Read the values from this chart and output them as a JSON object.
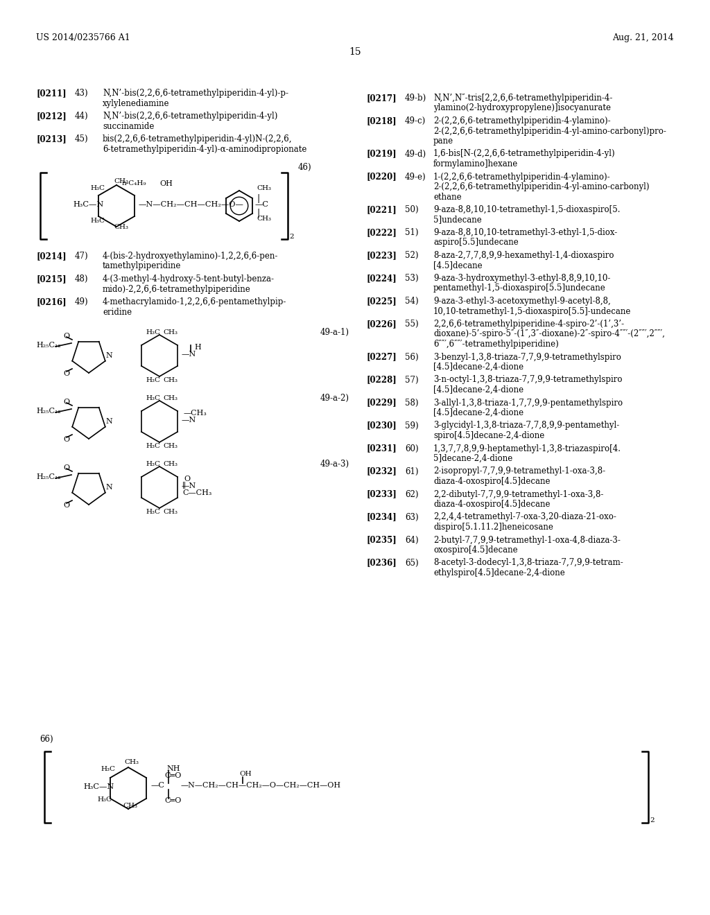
{
  "page_header_left": "US 2014/0235766 A1",
  "page_header_right": "Aug. 21, 2014",
  "page_number": "15",
  "background_color": "#ffffff",
  "right_entries": [
    {
      "ref": "[0217]",
      "num": "49-b)",
      "lines": [
        "N,N’,N″-tris[2,2,6,6-tetramethylpiperidin-4-",
        "ylamino(2-hydroxypropylene)]isocyanurate"
      ]
    },
    {
      "ref": "[0218]",
      "num": "49-c)",
      "lines": [
        "2-(2,2,6,6-tetramethylpiperidin-4-ylamino)-",
        "2-(2,2,6,6-tetramethylpiperidin-4-yl-amino-carbonyl)pro-",
        "pane"
      ]
    },
    {
      "ref": "[0219]",
      "num": "49-d)",
      "lines": [
        "1,6-bis[N-(2,2,6,6-tetramethylpiperidin-4-yl)",
        "formylamino]hexane"
      ]
    },
    {
      "ref": "[0220]",
      "num": "49-e)",
      "lines": [
        "1-(2,2,6,6-tetramethylpiperidin-4-ylamino)-",
        "2-(2,2,6,6-tetramethylpiperidin-4-yl-amino-carbonyl)",
        "ethane"
      ]
    },
    {
      "ref": "[0221]",
      "num": "50)",
      "lines": [
        "9-aza-8,8,10,10-tetramethyl-1,5-dioxaspiro[5.",
        "5]undecane"
      ]
    },
    {
      "ref": "[0222]",
      "num": "51)",
      "lines": [
        "9-aza-8,8,10,10-tetramethyl-3-ethyl-1,5-diox-",
        "aspiro[5.5]undecane"
      ]
    },
    {
      "ref": "[0223]",
      "num": "52)",
      "lines": [
        "8-aza-2,7,7,8,9,9-hexamethyl-1,4-dioxaspiro",
        "[4.5]decane"
      ]
    },
    {
      "ref": "[0224]",
      "num": "53)",
      "lines": [
        "9-aza-3-hydroxymethyl-3-ethyl-8,8,9,10,10-",
        "pentamethyl-1,5-dioxaspiro[5.5]undecane"
      ]
    },
    {
      "ref": "[0225]",
      "num": "54)",
      "lines": [
        "9-aza-3-ethyl-3-acetoxymethyl-9-acetyl-8,8,",
        "10,10-tetramethyl-1,5-dioxaspiro[5.5]-undecane"
      ]
    },
    {
      "ref": "[0226]",
      "num": "55)",
      "lines": [
        "2,2,6,6-tetramethylpiperidine-4-spiro-2’-(1’,3’-",
        "dioxane)-5’-spiro-5″-(1″,3″-dioxane)-2″-spiro-4″″′-(2″″′,2″″′,",
        "6″″′,6″″′-tetramethylpiperidine)"
      ]
    },
    {
      "ref": "[0227]",
      "num": "56)",
      "lines": [
        "3-benzyl-1,3,8-triaza-7,7,9,9-tetramethylspiro",
        "[4.5]decane-2,4-dione"
      ]
    },
    {
      "ref": "[0228]",
      "num": "57)",
      "lines": [
        "3-n-octyl-1,3,8-triaza-7,7,9,9-tetramethylspiro",
        "[4.5]decane-2,4-dione"
      ]
    },
    {
      "ref": "[0229]",
      "num": "58)",
      "lines": [
        "3-allyl-1,3,8-triaza-1,7,7,9,9-pentamethylspiro",
        "[4.5]decane-2,4-dione"
      ]
    },
    {
      "ref": "[0230]",
      "num": "59)",
      "lines": [
        "3-glycidyl-1,3,8-triaza-7,7,8,9,9-pentamethyl-",
        "spiro[4.5]decane-2,4-dione"
      ]
    },
    {
      "ref": "[0231]",
      "num": "60)",
      "lines": [
        "1,3,7,7,8,9,9-heptamethyl-1,3,8-triazaspiro[4.",
        "5]decane-2,4-dione"
      ]
    },
    {
      "ref": "[0232]",
      "num": "61)",
      "lines": [
        "2-isopropyl-7,7,9,9-tetramethyl-1-oxa-3,8-",
        "diaza-4-oxospiro[4.5]decane"
      ]
    },
    {
      "ref": "[0233]",
      "num": "62)",
      "lines": [
        "2,2-dibutyl-7,7,9,9-tetramethyl-1-oxa-3,8-",
        "diaza-4-oxospiro[4.5]decane"
      ]
    },
    {
      "ref": "[0234]",
      "num": "63)",
      "lines": [
        "2,2,4,4-tetramethyl-7-oxa-3,20-diaza-21-oxo-",
        "dispiro[5.1.11.2]heneicosane"
      ]
    },
    {
      "ref": "[0235]",
      "num": "64)",
      "lines": [
        "2-butyl-7,7,9,9-tetramethyl-1-oxa-4,8-diaza-3-",
        "oxospiro[4.5]decane"
      ]
    },
    {
      "ref": "[0236]",
      "num": "65)",
      "lines": [
        "8-acetyl-3-dodecyl-1,3,8-triaza-7,7,9,9-tetram-",
        "ethylspiro[4.5]decane-2,4-dione"
      ]
    }
  ]
}
